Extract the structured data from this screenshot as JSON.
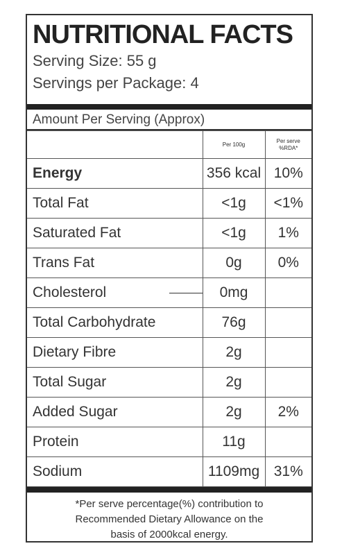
{
  "title": "NUTRITIONAL FACTS",
  "serving_size": "Serving Size: 55 g",
  "servings_per_package": "Servings per Package: 4",
  "amount_per_serving": "Amount Per Serving (Approx)",
  "headers": {
    "per100": "Per 100g",
    "rda_line1": "Per serve",
    "rda_line2": "%RDA*"
  },
  "rows": [
    {
      "name": "Energy",
      "per100": "356 kcal",
      "rda": "10%"
    },
    {
      "name": "Total Fat",
      "per100": "<1g",
      "rda": "<1%"
    },
    {
      "name": "Saturated Fat",
      "per100": "<1g",
      "rda": "1%"
    },
    {
      "name": "Trans Fat",
      "per100": "0g",
      "rda": "0%"
    },
    {
      "name": "Cholesterol",
      "per100": "0mg",
      "rda": ""
    },
    {
      "name": "Total Carbohydrate",
      "per100": "76g",
      "rda": ""
    },
    {
      "name": "Dietary Fibre",
      "per100": "2g",
      "rda": ""
    },
    {
      "name": "Total Sugar",
      "per100": "2g",
      "rda": ""
    },
    {
      "name": "Added Sugar",
      "per100": "2g",
      "rda": "2%"
    },
    {
      "name": "Protein",
      "per100": "11g",
      "rda": ""
    },
    {
      "name": "Sodium",
      "per100": "1109mg",
      "rda": "31%"
    }
  ],
  "footnote": {
    "line1": "*Per serve percentage(%) contribution to",
    "line2": "Recommended Dietary Allowance on the",
    "line3": "basis of 2000kcal energy."
  }
}
